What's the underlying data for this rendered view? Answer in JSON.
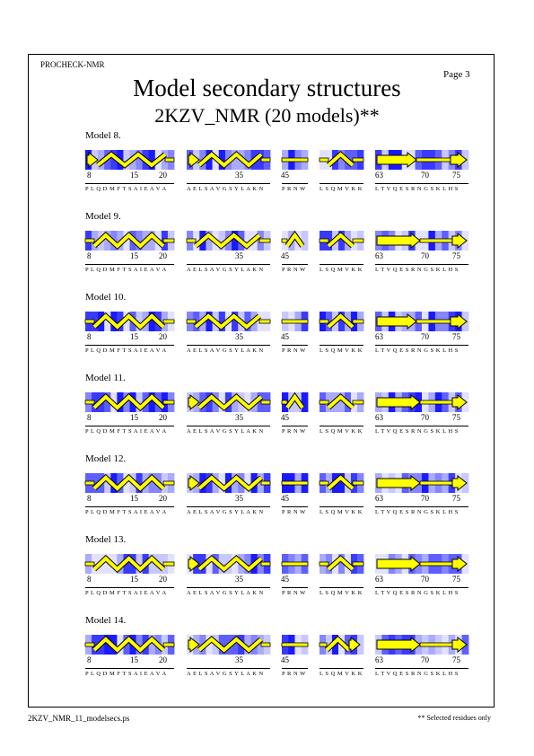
{
  "header": {
    "program": "PROCHECK-NMR",
    "page": "Page  3",
    "title": "Model secondary structures",
    "subtitle": "2KZV_NMR (20 models)**"
  },
  "footer": {
    "filename": "2KZV_NMR_11_modelsecs.ps",
    "note": "** Selected residues only"
  },
  "segments": [
    {
      "id": "s1",
      "sequence": "PLQDMFTSAIEAVA",
      "ticks": [
        {
          "label": "8"
        },
        {
          "label": "15"
        },
        {
          "label": "20"
        }
      ]
    },
    {
      "id": "s2",
      "sequence": "AELSAVGSYLAKN",
      "ticks": [
        {
          "label": "35"
        }
      ]
    },
    {
      "id": "s3",
      "sequence": "PRNW",
      "ticks": [
        {
          "label": "45"
        }
      ]
    },
    {
      "id": "s4",
      "sequence": "LSQMVKK",
      "ticks": []
    },
    {
      "id": "s5",
      "sequence": "LTVQESRNGSKLHS",
      "ticks": [
        {
          "label": "63"
        },
        {
          "label": "70"
        },
        {
          "label": "75"
        }
      ]
    }
  ],
  "models": [
    {
      "label": "Model  8.",
      "structures": {
        "s1": "arrow-helix",
        "s2": "arrow-helix",
        "s3": "coil",
        "s4": "helix",
        "s5": "strand-strand"
      }
    },
    {
      "label": "Model  9.",
      "structures": {
        "s1": "helix",
        "s2": "helix",
        "s3": "short-helix",
        "s4": "helix",
        "s5": "strand-long"
      }
    },
    {
      "label": "Model 10.",
      "structures": {
        "s1": "helix",
        "s2": "helix",
        "s3": "coil",
        "s4": "helix",
        "s5": "strand-strand"
      }
    },
    {
      "label": "Model 11.",
      "structures": {
        "s1": "helix",
        "s2": "arrow-helix",
        "s3": "short-helix",
        "s4": "helix",
        "s5": "strand-long"
      }
    },
    {
      "label": "Model 12.",
      "structures": {
        "s1": "helix",
        "s2": "arrow-helix",
        "s3": "coil",
        "s4": "helix",
        "s5": "strand-long"
      }
    },
    {
      "label": "Model 13.",
      "structures": {
        "s1": "helix",
        "s2": "arrow-helix",
        "s3": "coil",
        "s4": "helix",
        "s5": "strand-long"
      }
    },
    {
      "label": "Model 14.",
      "structures": {
        "s1": "helix",
        "s2": "arrow-helix",
        "s3": "coil",
        "s4": "helix-short",
        "s5": "strand-long"
      }
    }
  ],
  "colors": {
    "helix": "#ffff00",
    "outline": "#000000",
    "shade_dark": "#1a1aff",
    "shade_light": "#e6e6ff"
  }
}
